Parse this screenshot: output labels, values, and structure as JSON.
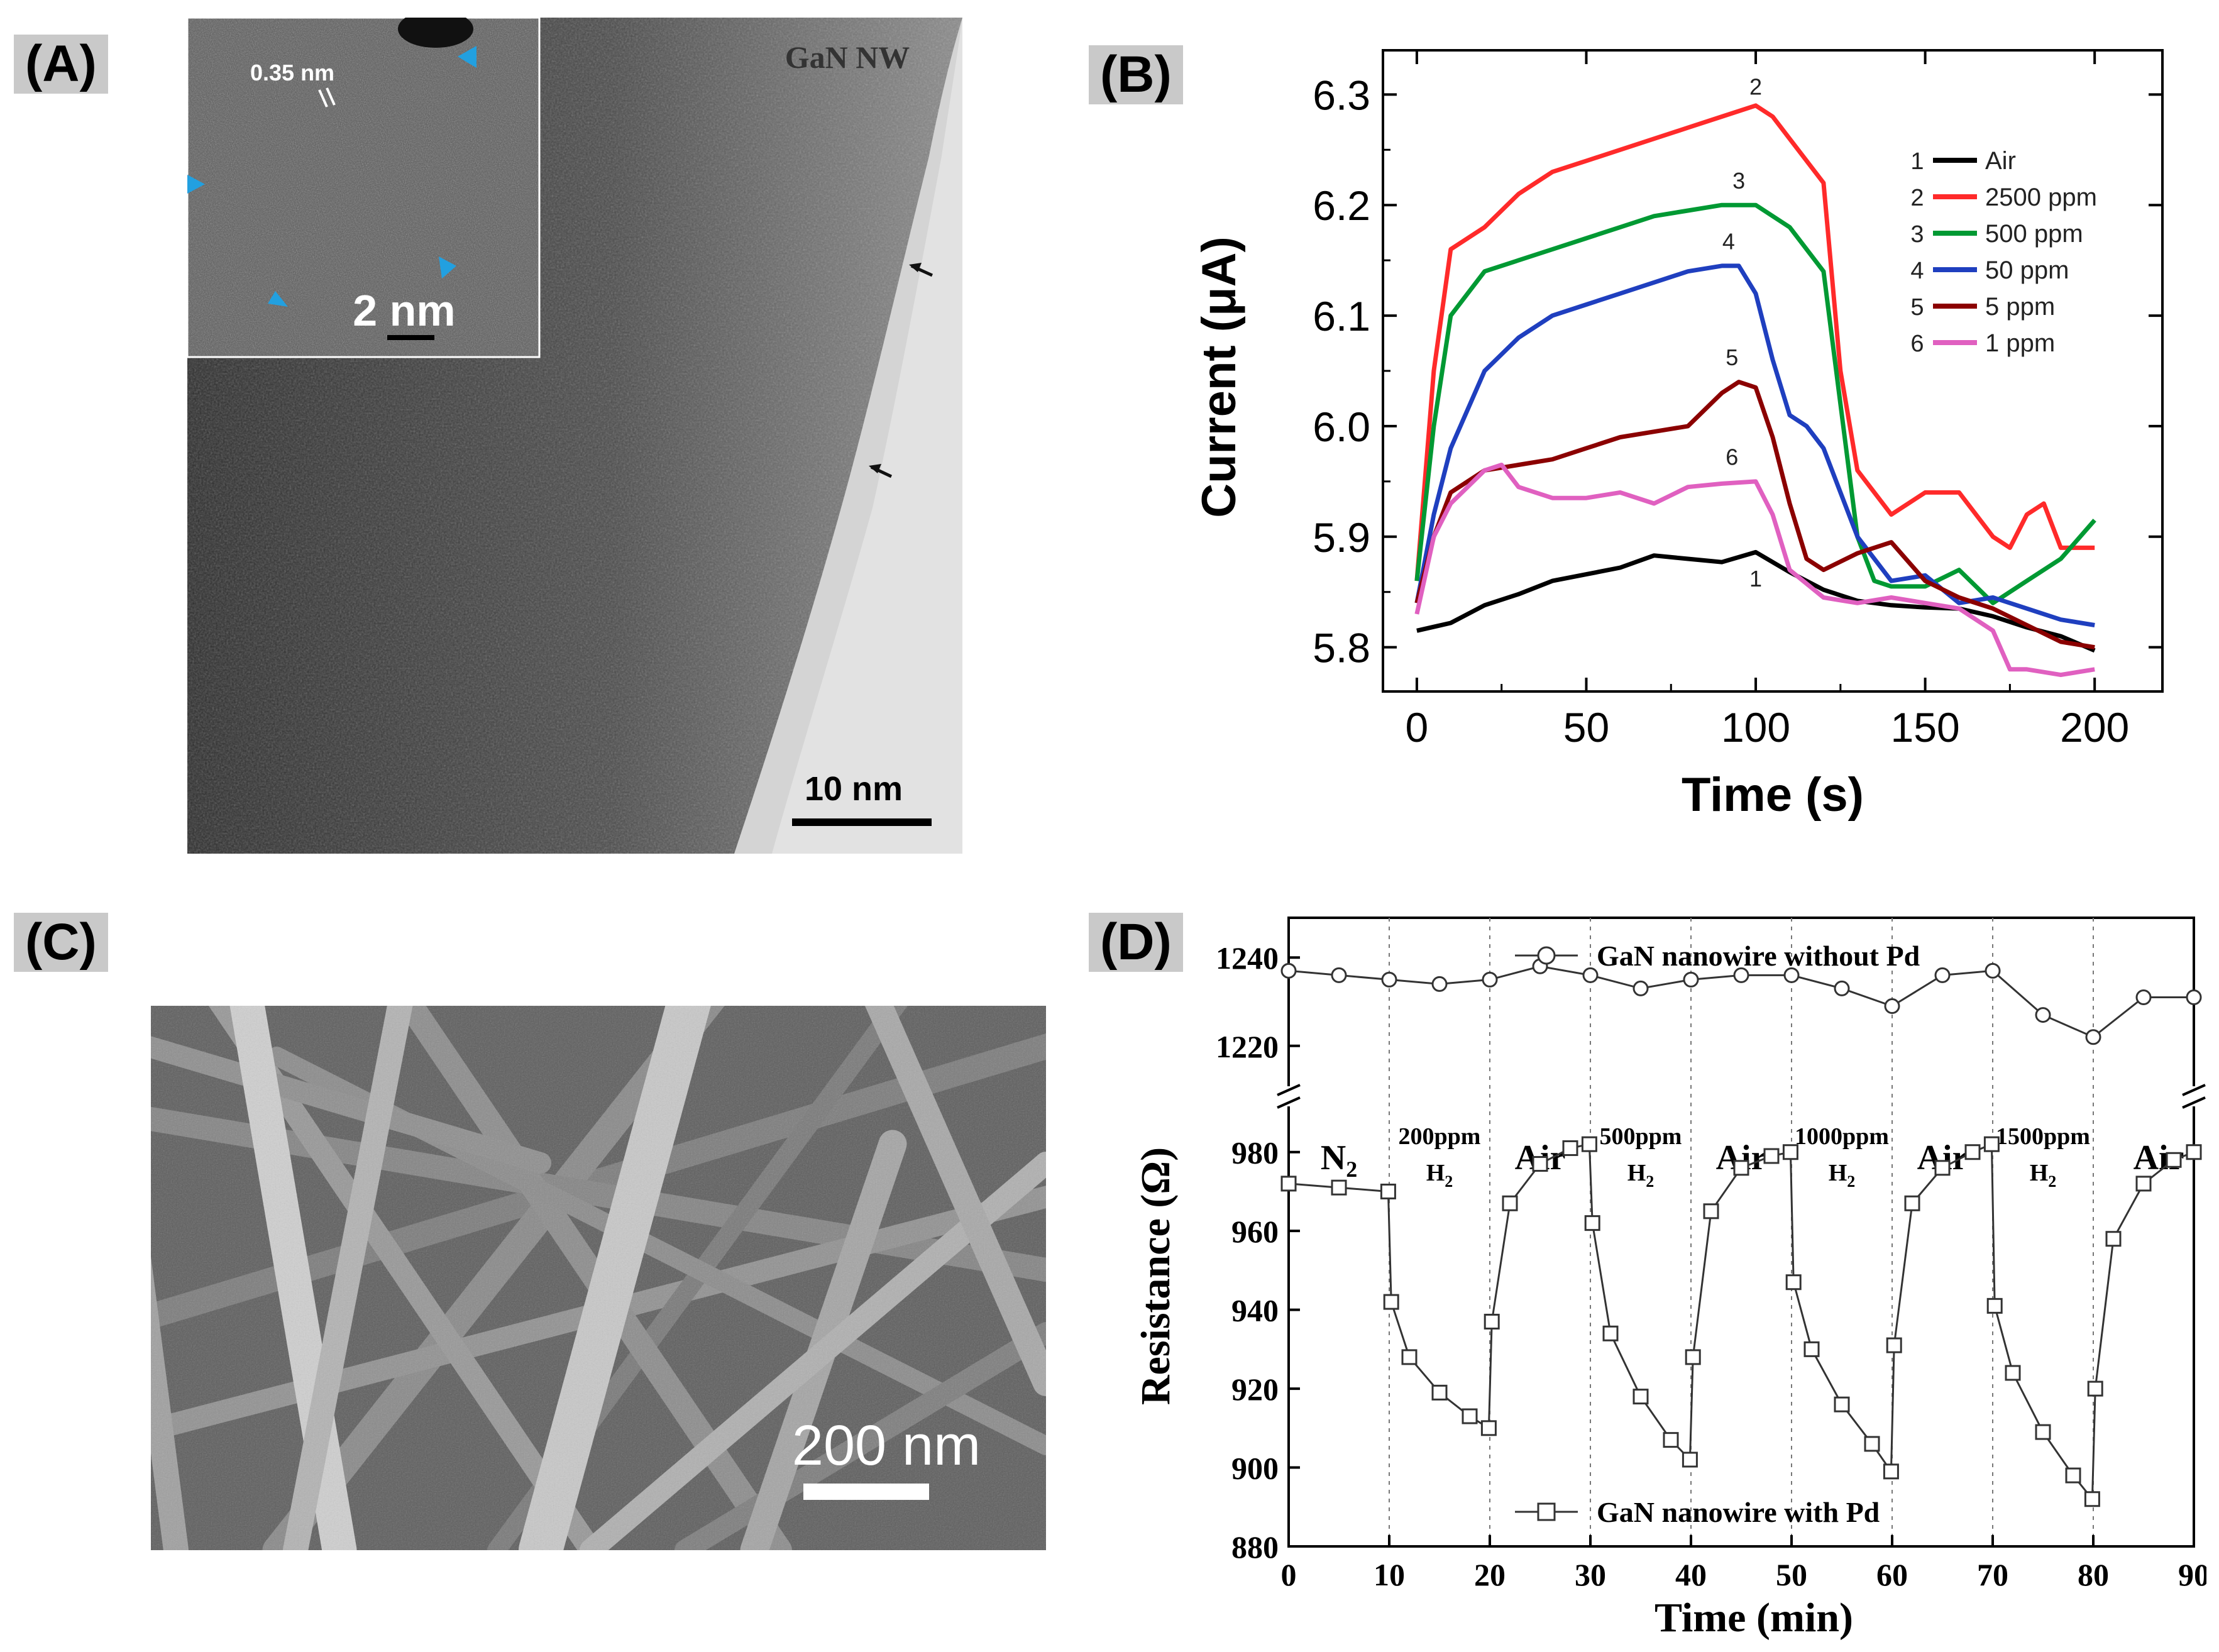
{
  "panel_labels": {
    "a": "(A)",
    "b": "(B)",
    "c": "(C)",
    "d": "(D)"
  },
  "panel_a": {
    "title": "GaN NW",
    "inset_label": "0.35 nm",
    "inset_scale": "2 nm",
    "scale_bar": "10 nm"
  },
  "panel_c": {
    "scale_bar": "200 nm"
  },
  "chart_data": [
    {
      "type": "line",
      "panel": "B",
      "xlabel": "Time (s)",
      "ylabel": "Current (μA)",
      "xlim": [
        -10,
        220
      ],
      "ylim": [
        5.76,
        6.34
      ],
      "xticks": [
        0,
        50,
        100,
        150,
        200
      ],
      "yticks": [
        5.8,
        5.9,
        6.0,
        6.1,
        6.2,
        6.3
      ],
      "ytick_labels": [
        "5.8",
        "5.9",
        "6.0",
        "6.1",
        "6.2",
        "6.3"
      ],
      "grid": false,
      "legend_position": "top-right",
      "series": [
        {
          "name": "Air",
          "number": "1",
          "color": "#000000",
          "x": [
            0,
            10,
            20,
            30,
            40,
            50,
            60,
            70,
            80,
            90,
            100,
            110,
            120,
            130,
            140,
            150,
            160,
            170,
            180,
            190,
            200
          ],
          "y": [
            5.815,
            5.822,
            5.838,
            5.848,
            5.86,
            5.866,
            5.872,
            5.883,
            5.88,
            5.877,
            5.886,
            5.868,
            5.852,
            5.842,
            5.838,
            5.836,
            5.835,
            5.828,
            5.818,
            5.81,
            5.797
          ]
        },
        {
          "name": "2500 ppm",
          "number": "2",
          "color": "#ff2a2a",
          "x": [
            0,
            5,
            10,
            20,
            30,
            40,
            50,
            60,
            70,
            80,
            90,
            100,
            105,
            110,
            120,
            125,
            130,
            140,
            150,
            160,
            170,
            175,
            180,
            185,
            190,
            200
          ],
          "y": [
            5.86,
            6.05,
            6.16,
            6.18,
            6.21,
            6.23,
            6.24,
            6.25,
            6.26,
            6.27,
            6.28,
            6.29,
            6.28,
            6.26,
            6.22,
            6.05,
            5.96,
            5.92,
            5.94,
            5.94,
            5.9,
            5.89,
            5.92,
            5.93,
            5.89,
            5.89
          ]
        },
        {
          "name": "500 ppm",
          "number": "3",
          "color": "#009933",
          "x": [
            0,
            5,
            10,
            20,
            30,
            40,
            50,
            60,
            70,
            80,
            90,
            100,
            110,
            120,
            125,
            130,
            135,
            140,
            150,
            160,
            170,
            180,
            190,
            200
          ],
          "y": [
            5.86,
            6.0,
            6.1,
            6.14,
            6.15,
            6.16,
            6.17,
            6.18,
            6.19,
            6.195,
            6.2,
            6.2,
            6.18,
            6.14,
            6.02,
            5.9,
            5.86,
            5.855,
            5.855,
            5.87,
            5.84,
            5.86,
            5.88,
            5.915
          ]
        },
        {
          "name": "50 ppm",
          "number": "4",
          "color": "#1f3fbf",
          "x": [
            0,
            5,
            10,
            20,
            30,
            40,
            50,
            60,
            70,
            80,
            90,
            95,
            100,
            105,
            110,
            115,
            120,
            130,
            140,
            150,
            160,
            170,
            180,
            190,
            200
          ],
          "y": [
            5.84,
            5.92,
            5.98,
            6.05,
            6.08,
            6.1,
            6.11,
            6.12,
            6.13,
            6.14,
            6.145,
            6.145,
            6.12,
            6.06,
            6.01,
            6.0,
            5.98,
            5.9,
            5.86,
            5.865,
            5.84,
            5.845,
            5.835,
            5.825,
            5.82
          ]
        },
        {
          "name": "5 ppm",
          "number": "5",
          "color": "#8b0000",
          "x": [
            0,
            5,
            10,
            20,
            30,
            40,
            50,
            60,
            70,
            80,
            90,
            95,
            100,
            105,
            110,
            115,
            120,
            130,
            140,
            150,
            160,
            170,
            180,
            190,
            200
          ],
          "y": [
            5.84,
            5.9,
            5.94,
            5.96,
            5.965,
            5.97,
            5.98,
            5.99,
            5.995,
            6.0,
            6.03,
            6.04,
            6.035,
            5.99,
            5.93,
            5.88,
            5.87,
            5.885,
            5.895,
            5.86,
            5.845,
            5.835,
            5.82,
            5.805,
            5.8
          ]
        },
        {
          "name": "1 ppm",
          "number": "6",
          "color": "#e060c0",
          "x": [
            0,
            5,
            10,
            20,
            25,
            30,
            40,
            50,
            60,
            70,
            80,
            90,
            100,
            105,
            110,
            120,
            130,
            140,
            150,
            160,
            170,
            175,
            180,
            190,
            200
          ],
          "y": [
            5.83,
            5.9,
            5.93,
            5.96,
            5.965,
            5.945,
            5.935,
            5.935,
            5.94,
            5.93,
            5.945,
            5.948,
            5.95,
            5.92,
            5.87,
            5.845,
            5.84,
            5.845,
            5.84,
            5.835,
            5.815,
            5.78,
            5.78,
            5.775,
            5.78
          ]
        }
      ]
    },
    {
      "type": "line",
      "panel": "D",
      "xlabel": "Time (min)",
      "ylabel": "Resistance (Ω)",
      "xlim": [
        0,
        90
      ],
      "xticks": [
        0,
        10,
        20,
        30,
        40,
        50,
        60,
        70,
        80,
        90
      ],
      "ylim_upper": [
        1212,
        1249
      ],
      "yticks_upper": [
        1220,
        1240
      ],
      "ylim_lower": [
        880,
        990
      ],
      "yticks_lower": [
        880,
        900,
        920,
        940,
        960,
        980
      ],
      "grid": false,
      "vlines": [
        10,
        20,
        30,
        40,
        50,
        60,
        70,
        80
      ],
      "regions": [
        {
          "label": "N",
          "sub": "2",
          "x": 5
        },
        {
          "label": "200ppm",
          "sub": "H",
          "sub2": "2",
          "x": 15
        },
        {
          "label": "Air",
          "x": 25
        },
        {
          "label": "500ppm",
          "sub": "H",
          "sub2": "2",
          "x": 35
        },
        {
          "label": "Air",
          "x": 45
        },
        {
          "label": "1000ppm",
          "sub": "H",
          "sub2": "2",
          "x": 55
        },
        {
          "label": "Air",
          "x": 65
        },
        {
          "label": "1500ppm",
          "sub": "H",
          "sub2": "2",
          "x": 75
        },
        {
          "label": "Air",
          "x": 86.5
        }
      ],
      "series": [
        {
          "name": "GaN nanowire without Pd",
          "marker": "circle",
          "axis": "upper",
          "x": [
            0,
            5,
            10,
            15,
            20,
            25,
            30,
            35,
            40,
            45,
            50,
            55,
            60,
            65,
            70,
            75,
            80,
            85,
            90
          ],
          "y": [
            1237,
            1236,
            1235,
            1234,
            1235,
            1238,
            1236,
            1233,
            1235,
            1236,
            1236,
            1233,
            1229,
            1236,
            1237,
            1227,
            1222,
            1231,
            1231
          ]
        },
        {
          "name": "GaN nanowire with Pd",
          "marker": "square",
          "axis": "lower",
          "x": [
            0,
            5,
            9.9,
            10.2,
            12,
            15,
            18,
            19.9,
            20.2,
            22,
            25,
            28,
            29.9,
            30.2,
            32,
            35,
            38,
            39.9,
            40.2,
            42,
            45,
            48,
            49.9,
            50.2,
            52,
            55,
            58,
            59.9,
            60.2,
            62,
            65,
            68,
            69.9,
            70.2,
            72,
            75,
            78,
            79.9,
            80.2,
            82,
            85,
            88,
            90
          ],
          "y": [
            972,
            971,
            970,
            942,
            928,
            919,
            913,
            910,
            937,
            967,
            977,
            981,
            982,
            962,
            934,
            918,
            907,
            902,
            928,
            965,
            976,
            979,
            980,
            947,
            930,
            916,
            906,
            899,
            931,
            967,
            976,
            980,
            982,
            941,
            924,
            909,
            898,
            892,
            920,
            958,
            972,
            978,
            980
          ]
        }
      ]
    }
  ]
}
